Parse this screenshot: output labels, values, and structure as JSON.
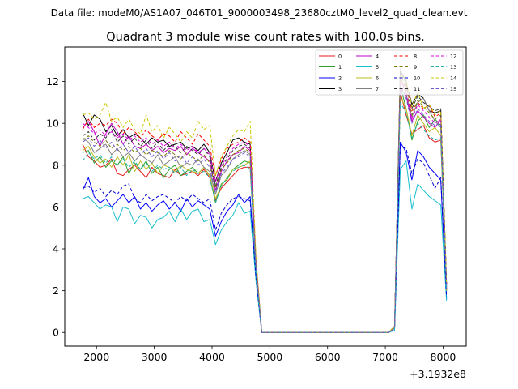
{
  "suptitle": "Data file: modeM0/AS1A07_046T01_9000003498_23680cztM0_level2_quad_clean.evt",
  "chart_data": {
    "type": "line",
    "title": "Quadrant 3 module wise count rates with 100.0s bins.",
    "xlabel": "",
    "ylabel": "",
    "x_offset_label": "+3.1932e8",
    "xlim": [
      1450,
      8400
    ],
    "ylim": [
      -0.65,
      13.65
    ],
    "xticks": [
      "2000",
      "3000",
      "4000",
      "5000",
      "6000",
      "7000",
      "8000"
    ],
    "yticks": [
      "0",
      "2",
      "4",
      "6",
      "8",
      "10",
      "12"
    ],
    "grid": false,
    "legend_placement": "top-right",
    "x": [
      1760,
      1860,
      1960,
      2060,
      2160,
      2260,
      2360,
      2460,
      2560,
      2660,
      2760,
      2860,
      2960,
      3060,
      3160,
      3260,
      3360,
      3460,
      3560,
      3660,
      3760,
      3860,
      3960,
      4060,
      4160,
      4260,
      4360,
      4460,
      4560,
      4660,
      4760,
      4860,
      7060,
      7160,
      7260,
      7360,
      7460,
      7560,
      7660,
      7760,
      7860,
      7960,
      8060
    ],
    "series": [
      {
        "name": "0",
        "color": "#e41a1c",
        "dash": "solid",
        "values": [
          9.0,
          8.4,
          8.2,
          7.9,
          8.0,
          8.3,
          7.6,
          7.5,
          7.8,
          8.0,
          7.7,
          7.4,
          7.9,
          7.6,
          7.5,
          7.4,
          7.8,
          7.5,
          7.6,
          7.7,
          7.5,
          7.8,
          7.4,
          6.3,
          6.9,
          7.2,
          7.5,
          7.8,
          7.9,
          7.9,
          3.0,
          0.0,
          0.0,
          0.2,
          11.5,
          10.4,
          9.5,
          9.7,
          9.9,
          9.3,
          9.1,
          9.2,
          2.0
        ]
      },
      {
        "name": "1",
        "color": "#2ca02c",
        "dash": "solid",
        "values": [
          8.6,
          8.7,
          8.1,
          8.4,
          7.9,
          8.2,
          8.0,
          8.4,
          7.6,
          8.1,
          7.8,
          8.2,
          7.6,
          7.9,
          7.4,
          7.8,
          8.0,
          7.5,
          7.7,
          7.9,
          7.6,
          7.9,
          7.5,
          6.2,
          7.1,
          7.3,
          7.8,
          8.0,
          8.2,
          8.1,
          3.1,
          0.0,
          0.0,
          0.3,
          11.8,
          10.7,
          9.2,
          10.1,
          10.4,
          9.8,
          10.2,
          9.9,
          2.1
        ]
      },
      {
        "name": "2",
        "color": "#0000ff",
        "dash": "solid",
        "values": [
          6.8,
          7.4,
          6.5,
          6.2,
          6.4,
          6.0,
          6.3,
          6.6,
          6.2,
          6.5,
          5.9,
          6.2,
          5.8,
          6.1,
          6.3,
          5.9,
          6.2,
          5.8,
          6.4,
          6.0,
          6.3,
          6.1,
          5.9,
          4.6,
          5.3,
          5.8,
          6.1,
          6.6,
          6.2,
          6.5,
          2.6,
          0.0,
          0.0,
          0.2,
          9.1,
          8.6,
          7.3,
          8.7,
          8.4,
          7.9,
          7.6,
          7.3,
          1.6
        ]
      },
      {
        "name": "3",
        "color": "#000000",
        "dash": "solid",
        "values": [
          10.5,
          9.9,
          10.4,
          10.2,
          9.6,
          9.9,
          9.4,
          9.7,
          9.3,
          9.5,
          9.3,
          9.0,
          9.3,
          9.1,
          9.2,
          8.9,
          9.0,
          9.1,
          8.8,
          8.9,
          8.7,
          9.0,
          8.6,
          7.2,
          8.1,
          8.6,
          9.2,
          9.3,
          9.1,
          9.0,
          3.4,
          0.0,
          0.0,
          0.3,
          12.5,
          12.0,
          10.9,
          11.4,
          11.2,
          10.6,
          10.5,
          10.6,
          2.3
        ]
      },
      {
        "name": "4",
        "color": "#c000c0",
        "dash": "solid",
        "values": [
          9.8,
          10.1,
          9.6,
          8.9,
          9.5,
          10.0,
          9.6,
          9.0,
          9.4,
          8.9,
          8.8,
          9.0,
          8.7,
          8.9,
          8.6,
          8.8,
          8.7,
          8.9,
          8.5,
          8.8,
          8.6,
          8.4,
          8.2,
          6.8,
          7.7,
          8.2,
          8.5,
          8.6,
          8.9,
          8.7,
          3.3,
          0.0,
          0.0,
          0.3,
          11.7,
          11.3,
          10.1,
          10.6,
          10.3,
          10.0,
          9.8,
          10.2,
          2.2
        ]
      },
      {
        "name": "5",
        "color": "#17becf",
        "dash": "solid",
        "values": [
          6.4,
          6.5,
          6.2,
          5.9,
          6.1,
          6.0,
          5.3,
          6.0,
          5.9,
          5.2,
          5.6,
          5.5,
          5.0,
          5.4,
          5.5,
          5.8,
          5.3,
          5.9,
          5.4,
          5.8,
          5.9,
          5.3,
          5.4,
          4.2,
          4.9,
          5.3,
          5.6,
          6.2,
          5.7,
          5.8,
          2.5,
          0.0,
          0.0,
          0.1,
          7.8,
          8.2,
          5.9,
          7.1,
          6.8,
          6.5,
          6.3,
          6.1,
          1.5
        ]
      },
      {
        "name": "6",
        "color": "#bcbd22",
        "dash": "solid",
        "values": [
          8.7,
          8.9,
          8.4,
          8.1,
          8.3,
          7.9,
          8.4,
          8.0,
          8.5,
          7.7,
          8.2,
          7.8,
          8.1,
          7.6,
          8.0,
          7.9,
          7.7,
          8.0,
          7.8,
          7.7,
          7.6,
          7.9,
          7.5,
          6.4,
          7.0,
          7.4,
          7.8,
          7.9,
          8.0,
          8.2,
          3.0,
          0.0,
          0.0,
          0.2,
          11.3,
          10.7,
          9.4,
          10.4,
          10.0,
          9.6,
          9.8,
          9.4,
          2.0
        ]
      },
      {
        "name": "7",
        "color": "#808080",
        "dash": "solid",
        "values": [
          9.3,
          9.1,
          8.6,
          8.8,
          9.0,
          8.5,
          8.8,
          8.4,
          8.6,
          8.2,
          8.5,
          8.3,
          8.1,
          8.5,
          8.0,
          8.2,
          8.4,
          7.9,
          8.1,
          8.0,
          8.3,
          7.9,
          7.7,
          6.6,
          7.5,
          7.8,
          8.3,
          8.5,
          8.7,
          8.5,
          3.2,
          0.0,
          0.0,
          0.2,
          12.2,
          11.4,
          10.3,
          11.0,
          11.2,
          10.6,
          10.1,
          9.8,
          2.1
        ]
      },
      {
        "name": "8",
        "color": "#ff0000",
        "dash": "dashed",
        "values": [
          9.7,
          10.2,
          9.8,
          10.0,
          9.9,
          10.2,
          10.0,
          9.5,
          9.8,
          9.6,
          9.3,
          9.7,
          9.4,
          9.2,
          9.5,
          9.4,
          9.1,
          9.6,
          9.3,
          9.0,
          9.5,
          9.2,
          8.9,
          7.5,
          8.3,
          8.8,
          9.0,
          9.1,
          9.3,
          9.1,
          3.5,
          0.0,
          0.0,
          0.3,
          12.0,
          11.8,
          10.6,
          11.0,
          10.7,
          10.9,
          10.3,
          10.5,
          2.3
        ]
      },
      {
        "name": "9",
        "color": "#7a7a00",
        "dash": "dashed",
        "values": [
          9.2,
          9.4,
          9.1,
          8.9,
          9.2,
          8.8,
          9.0,
          8.7,
          8.9,
          8.6,
          8.8,
          8.5,
          8.7,
          8.6,
          8.4,
          8.7,
          8.5,
          8.3,
          8.6,
          8.4,
          8.2,
          8.5,
          8.1,
          6.9,
          7.8,
          8.1,
          8.5,
          8.7,
          8.8,
          8.6,
          3.3,
          0.0,
          0.0,
          0.3,
          12.4,
          11.6,
          10.4,
          11.1,
          10.8,
          10.5,
          10.2,
          10.4,
          2.2
        ]
      },
      {
        "name": "10",
        "color": "#0000cc",
        "dash": "dashed",
        "values": [
          6.9,
          7.0,
          6.7,
          6.9,
          6.5,
          6.8,
          6.6,
          7.0,
          7.1,
          6.4,
          6.2,
          6.6,
          6.3,
          6.5,
          6.6,
          6.4,
          6.2,
          6.5,
          6.3,
          6.6,
          6.4,
          6.2,
          6.4,
          4.9,
          5.7,
          6.1,
          6.4,
          6.5,
          6.4,
          6.3,
          2.7,
          0.0,
          0.0,
          0.2,
          8.9,
          8.8,
          7.6,
          8.3,
          8.1,
          7.5,
          6.9,
          7.4,
          1.7
        ]
      },
      {
        "name": "11",
        "color": "#303030",
        "dash": "dashed",
        "values": [
          9.4,
          9.6,
          9.2,
          9.5,
          9.3,
          9.7,
          9.1,
          9.4,
          9.0,
          9.3,
          8.9,
          9.2,
          8.8,
          9.1,
          8.7,
          9.0,
          8.9,
          8.6,
          8.9,
          8.7,
          8.5,
          8.8,
          8.4,
          7.0,
          7.9,
          8.3,
          8.7,
          8.9,
          9.0,
          8.8,
          3.4,
          0.0,
          0.0,
          0.3,
          12.6,
          11.9,
          10.7,
          11.3,
          11.0,
          10.8,
          10.6,
          10.7,
          2.3
        ]
      },
      {
        "name": "12",
        "color": "#dd00dd",
        "dash": "dashed",
        "values": [
          10.0,
          9.8,
          9.5,
          9.7,
          9.4,
          9.6,
          9.3,
          9.5,
          9.2,
          9.4,
          9.1,
          9.3,
          9.0,
          9.2,
          8.9,
          9.1,
          8.8,
          9.0,
          8.7,
          8.9,
          8.6,
          8.8,
          8.5,
          7.2,
          8.0,
          8.4,
          8.8,
          9.0,
          9.1,
          8.9,
          3.5,
          0.0,
          0.0,
          0.3,
          12.1,
          11.5,
          10.2,
          10.9,
          10.6,
          10.3,
          10.0,
          10.2,
          2.2
        ]
      },
      {
        "name": "13",
        "color": "#20b2aa",
        "dash": "dashed",
        "values": [
          8.2,
          8.6,
          8.3,
          8.5,
          8.1,
          8.4,
          8.0,
          8.3,
          7.9,
          8.2,
          7.8,
          8.1,
          7.7,
          8.0,
          7.8,
          7.9,
          7.6,
          7.9,
          7.5,
          7.8,
          7.6,
          7.7,
          7.4,
          6.2,
          7.0,
          7.4,
          7.7,
          7.9,
          8.0,
          7.8,
          3.0,
          0.0,
          0.0,
          0.2,
          11.0,
          10.5,
          9.3,
          10.0,
          9.7,
          9.4,
          9.2,
          9.3,
          2.0
        ]
      },
      {
        "name": "14",
        "color": "#c8c800",
        "dash": "dashed",
        "values": [
          10.4,
          10.5,
          10.2,
          10.4,
          11.0,
          10.1,
          10.3,
          9.8,
          10.2,
          9.7,
          9.5,
          10.4,
          9.6,
          9.9,
          9.3,
          9.8,
          9.5,
          9.1,
          9.6,
          9.3,
          10.1,
          9.7,
          9.9,
          7.5,
          8.4,
          8.9,
          9.4,
          9.7,
          9.6,
          10.1,
          3.7,
          0.0,
          0.0,
          0.3,
          12.3,
          12.1,
          10.8,
          11.5,
          10.7,
          10.9,
          10.4,
          10.6,
          2.4
        ]
      },
      {
        "name": "15",
        "color": "#6a5acd",
        "dash": "dashed",
        "values": [
          9.1,
          9.3,
          8.9,
          9.2,
          8.8,
          9.1,
          8.7,
          9.0,
          8.6,
          8.9,
          8.5,
          8.8,
          8.4,
          8.7,
          8.3,
          8.6,
          8.2,
          8.5,
          8.1,
          8.4,
          8.0,
          8.3,
          7.9,
          6.7,
          7.6,
          7.9,
          8.3,
          8.4,
          8.6,
          8.4,
          3.2,
          0.0,
          0.0,
          0.2,
          11.9,
          11.2,
          10.0,
          10.7,
          10.4,
          10.1,
          9.9,
          10.0,
          2.1
        ]
      }
    ]
  }
}
